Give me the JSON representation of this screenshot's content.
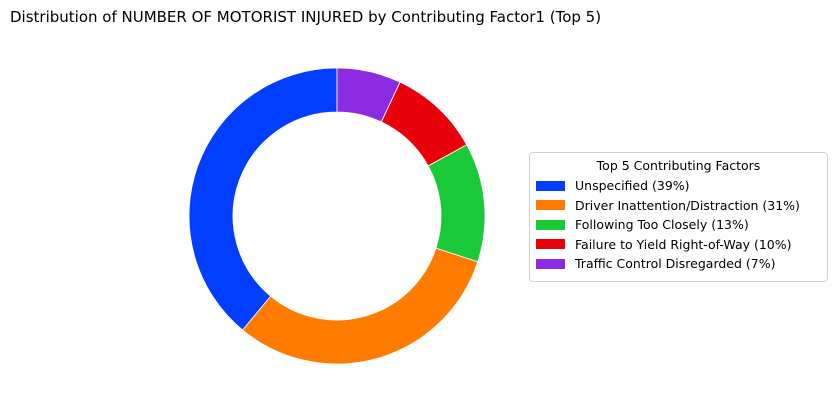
{
  "chart_data": {
    "type": "pie",
    "variant": "donut",
    "title": "Distribution of NUMBER OF MOTORIST INJURED by Contributing Factor1 (Top 5)",
    "legend_title": "Top 5 Contributing Factors",
    "legend_placement": "right",
    "slices": [
      {
        "label": "Unspecified (39%)",
        "value": 39,
        "color": "#023eff"
      },
      {
        "label": "Driver Inattention/Distraction (31%)",
        "value": 31,
        "color": "#ff7c00"
      },
      {
        "label": "Following Too Closely (13%)",
        "value": 13,
        "color": "#1ac938"
      },
      {
        "label": "Failure to Yield Right-of-Way (10%)",
        "value": 10,
        "color": "#e8000b"
      },
      {
        "label": "Traffic Control Disregarded (7%)",
        "value": 7,
        "color": "#8b2be2"
      }
    ]
  }
}
